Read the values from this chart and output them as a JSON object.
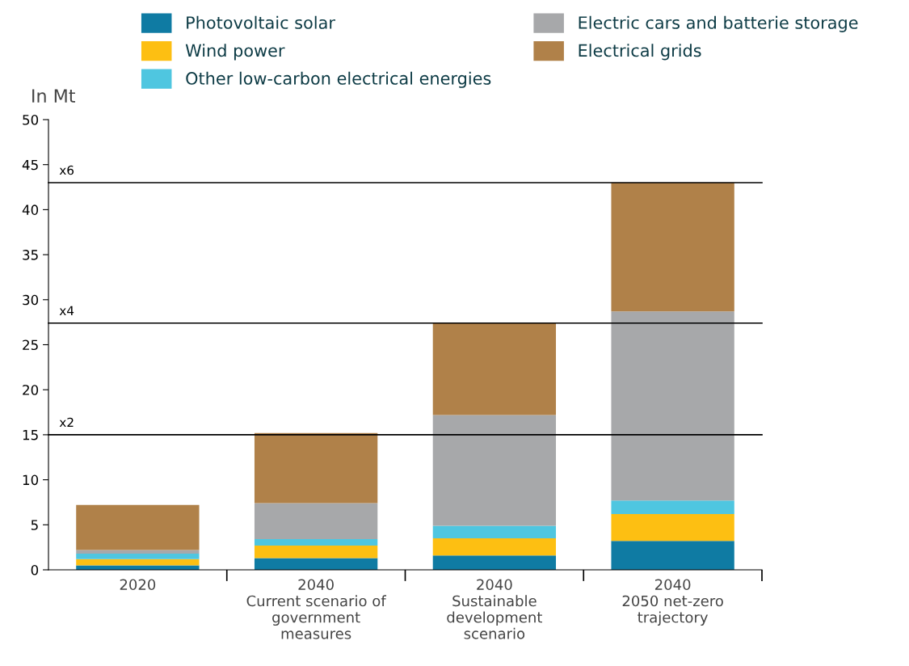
{
  "chart_data": {
    "type": "bar",
    "stacked": true,
    "ylabel": "In Mt",
    "categories": [
      "2020",
      "2040\nCurrent scenario of\ngovernment\nmeasures",
      "2040\nSustainable\ndevelopment\nscenario",
      "2040\n2050 net-zero\ntrajectory"
    ],
    "series": [
      {
        "name": "Photovoltaic solar",
        "color": "#0f7ba3",
        "values": [
          0.5,
          1.3,
          1.6,
          3.2
        ]
      },
      {
        "name": "Wind power",
        "color": "#fdbf12",
        "values": [
          0.7,
          1.4,
          1.9,
          3.0
        ]
      },
      {
        "name": "Other low-carbon electrical energies",
        "color": "#4fc6e0",
        "values": [
          0.6,
          0.7,
          1.4,
          1.5
        ]
      },
      {
        "name": "Electric cars and batterie storage",
        "color": "#a7a8aa",
        "values": [
          0.4,
          4.0,
          12.3,
          21.0
        ]
      },
      {
        "name": "Electrical grids",
        "color": "#b08149",
        "values": [
          5.0,
          7.8,
          10.2,
          14.3
        ]
      }
    ],
    "ylim": [
      0,
      50
    ],
    "yticks": [
      0,
      5,
      10,
      15,
      20,
      25,
      30,
      35,
      40,
      45,
      50
    ],
    "ref_lines": [
      {
        "axis": "y",
        "value": 15,
        "label": "x2",
        "color": "#000000"
      },
      {
        "axis": "y",
        "value": 27.4,
        "label": "x4",
        "color": "#000000"
      },
      {
        "axis": "y",
        "value": 43,
        "label": "x6",
        "color": "#000000"
      }
    ],
    "grid": false,
    "legend": "top"
  }
}
